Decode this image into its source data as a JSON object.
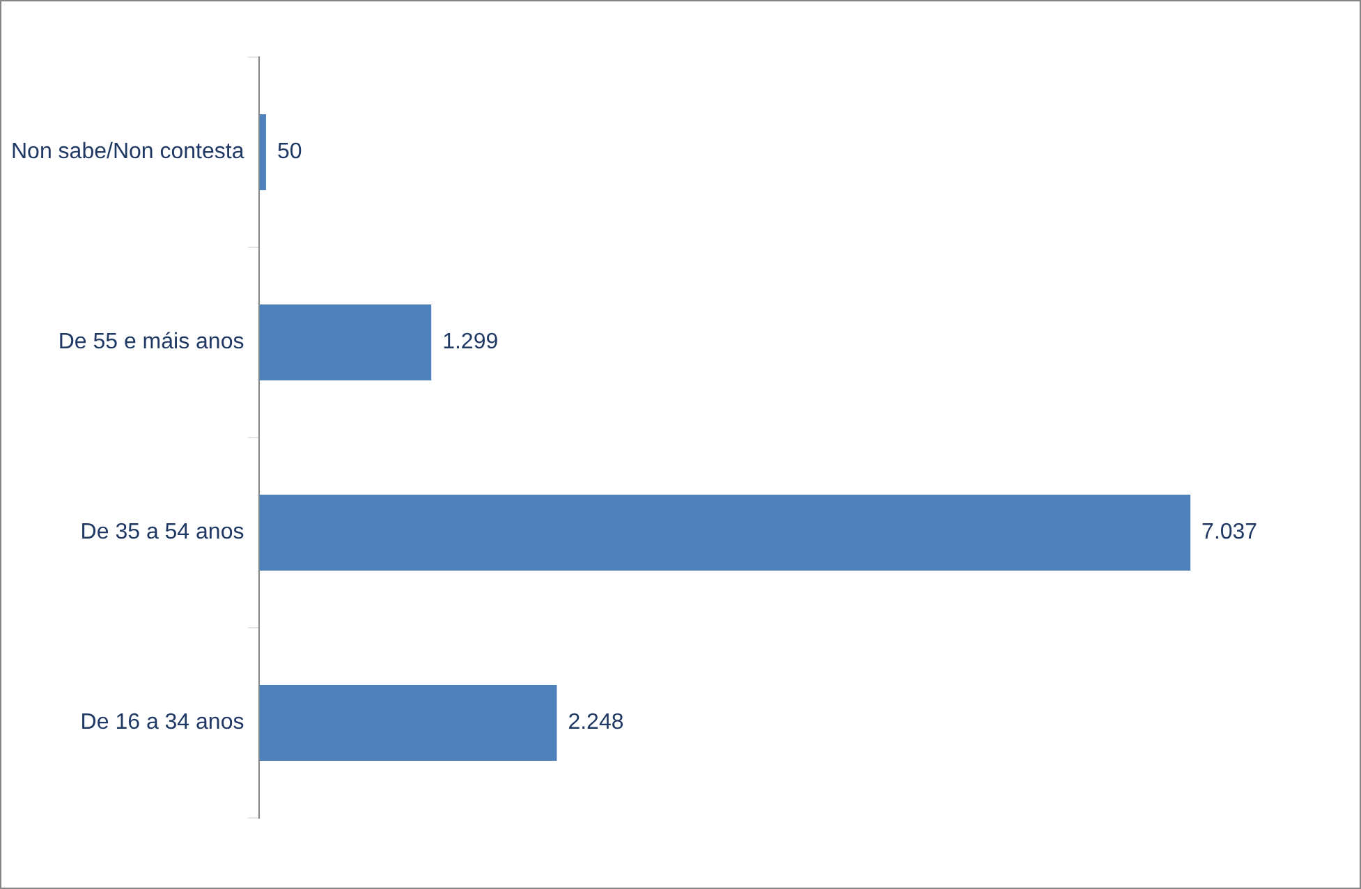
{
  "chart_data": {
    "type": "bar",
    "orientation": "horizontal",
    "categories": [
      "Non sabe/Non contesta",
      "De 55 e máis anos",
      "De 35 a 54 anos",
      "De 16 a 34 anos"
    ],
    "values": [
      50,
      1299,
      7037,
      2248
    ],
    "value_labels": [
      "50",
      "1.299",
      "7.037",
      "2.248"
    ],
    "color": "#4f81bd",
    "tick_labels": "y"
  }
}
